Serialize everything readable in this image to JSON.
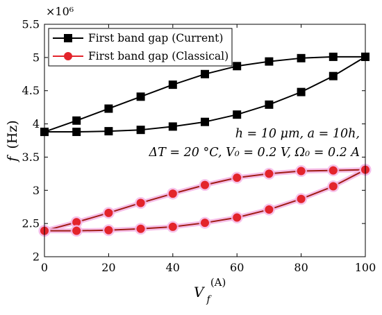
{
  "chart_data": {
    "type": "line",
    "multiplier": "×10⁶",
    "ylabel": {
      "var": "f",
      "unit": "(Hz)"
    },
    "xlabel": {
      "var": "V",
      "sub": "f",
      "sup": "(A)"
    },
    "xlim": [
      0,
      100
    ],
    "ylim": [
      2.0,
      5.5
    ],
    "xticks": [
      0,
      20,
      40,
      60,
      80,
      100
    ],
    "xtick_labels": [
      "0",
      "20",
      "40",
      "60",
      "80",
      "100"
    ],
    "yticks": [
      2.0,
      2.5,
      3.0,
      3.5,
      4.0,
      4.5,
      5.0,
      5.5
    ],
    "ytick_labels": [
      "2",
      "2.5",
      "3",
      "3.5",
      "4",
      "4.5",
      "5",
      "5.5"
    ],
    "grid": false,
    "legend_position": "top-left",
    "annotation": {
      "line1": "h = 10 μm, a = 10h,",
      "line2": "ΔT = 20 °C, V₀ = 0.2 V, Ω₀ = 0.2 A"
    },
    "series": [
      {
        "name": "First band gap (Current)",
        "color": "#000000",
        "marker": "square",
        "x": [
          0,
          10,
          20,
          30,
          40,
          50,
          60,
          70,
          80,
          90,
          100
        ],
        "upper": [
          3.88,
          4.05,
          4.23,
          4.41,
          4.59,
          4.75,
          4.87,
          4.94,
          4.99,
          5.01,
          5.01
        ],
        "lower": [
          3.88,
          3.88,
          3.89,
          3.91,
          3.96,
          4.03,
          4.14,
          4.29,
          4.48,
          4.72,
          5.01
        ]
      },
      {
        "name": "First band gap (Classical)",
        "color": "#e3242b",
        "line_color": "#a01c14",
        "halo_color": "#f5b8e6",
        "marker": "circle",
        "x": [
          0,
          10,
          20,
          30,
          40,
          50,
          60,
          70,
          80,
          90,
          100
        ],
        "upper": [
          2.39,
          2.52,
          2.66,
          2.81,
          2.95,
          3.08,
          3.19,
          3.25,
          3.29,
          3.3,
          3.31
        ],
        "lower": [
          2.39,
          2.39,
          2.4,
          2.42,
          2.45,
          2.51,
          2.59,
          2.71,
          2.87,
          3.06,
          3.31
        ]
      }
    ]
  }
}
